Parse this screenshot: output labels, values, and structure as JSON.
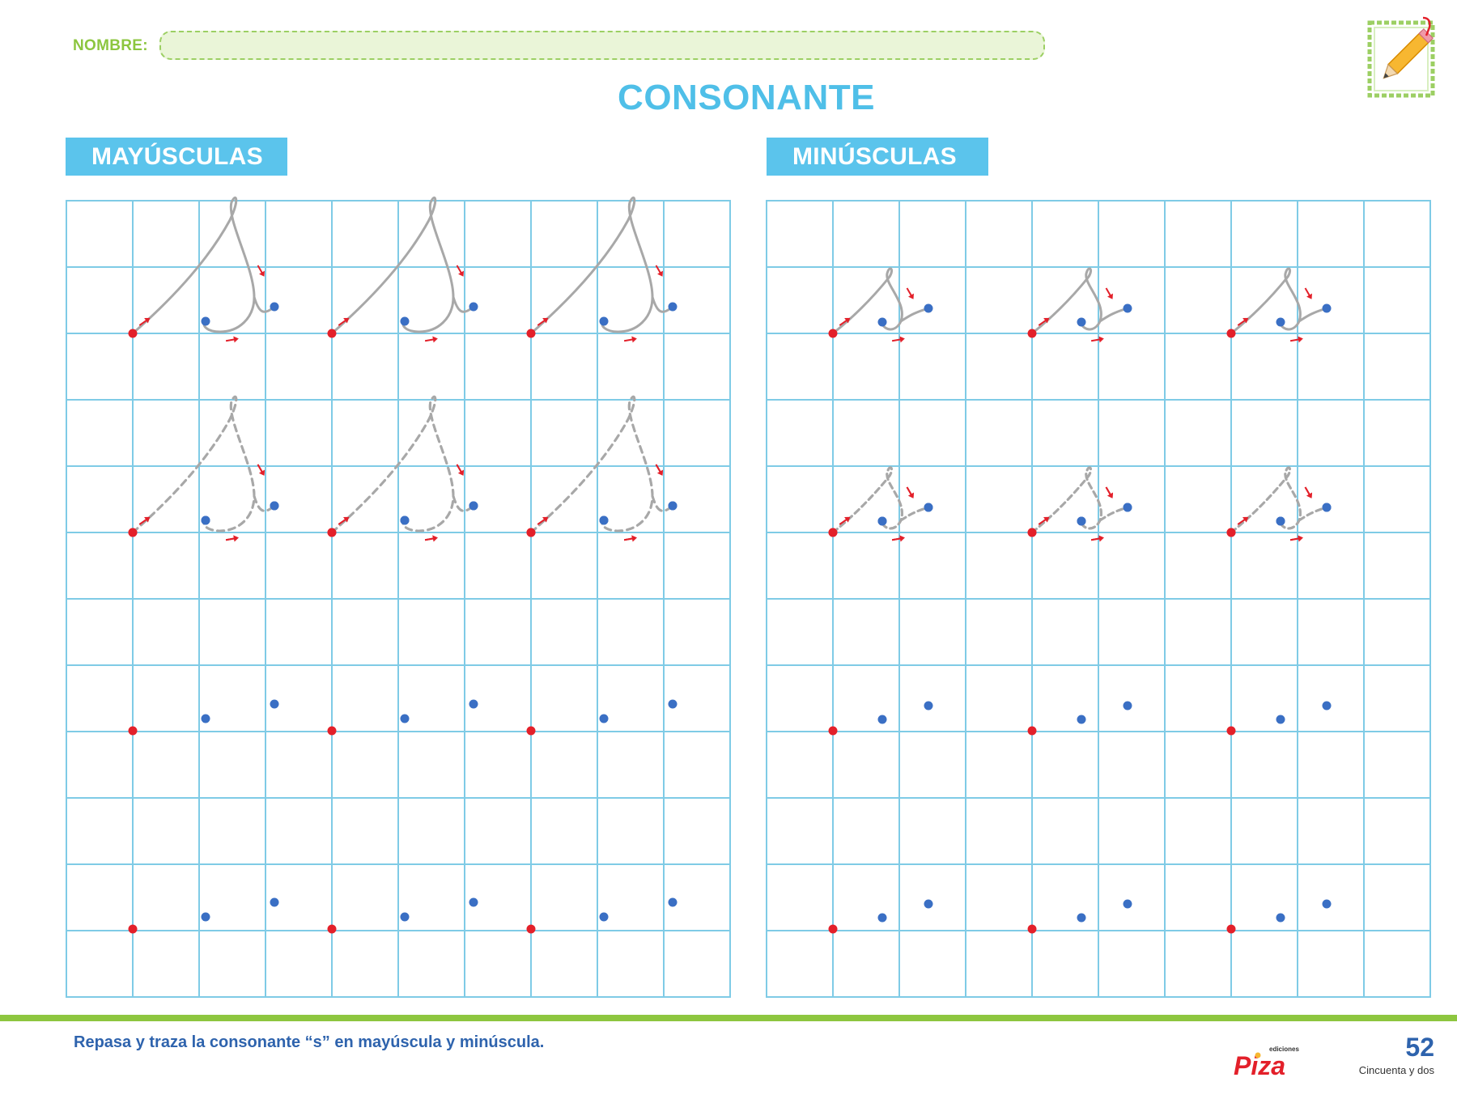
{
  "header": {
    "name_label": "NOMBRE:",
    "title": "CONSONANTE"
  },
  "sections": {
    "upper_label": "MAYÚSCULAS",
    "lower_label": "MINÚSCULAS"
  },
  "worksheet": {
    "letter": "s",
    "upper_rows": [
      "solid",
      "dashed",
      "dashed",
      "dots",
      "dots"
    ],
    "lower_rows": [
      "solid",
      "dashed",
      "dashed",
      "dots",
      "dots"
    ],
    "letters_per_row": 3
  },
  "colors": {
    "grid": "#7fcbe6",
    "trace": "#a8a8a8",
    "start_dot": "#e3202a",
    "end_dot": "#3a6fc4",
    "arrow": "#e3202a",
    "accent_green": "#8dc63f",
    "accent_blue": "#5bc4ec"
  },
  "icons": {
    "header": "pencil-icon",
    "logo": "publisher-logo"
  },
  "footer": {
    "instruction": "Repasa y traza la consonante “s” en mayúscula y minúscula.",
    "publisher_small": "ediciones",
    "publisher": "Piza",
    "page_number": "52",
    "page_words": "Cincuenta y dos"
  }
}
